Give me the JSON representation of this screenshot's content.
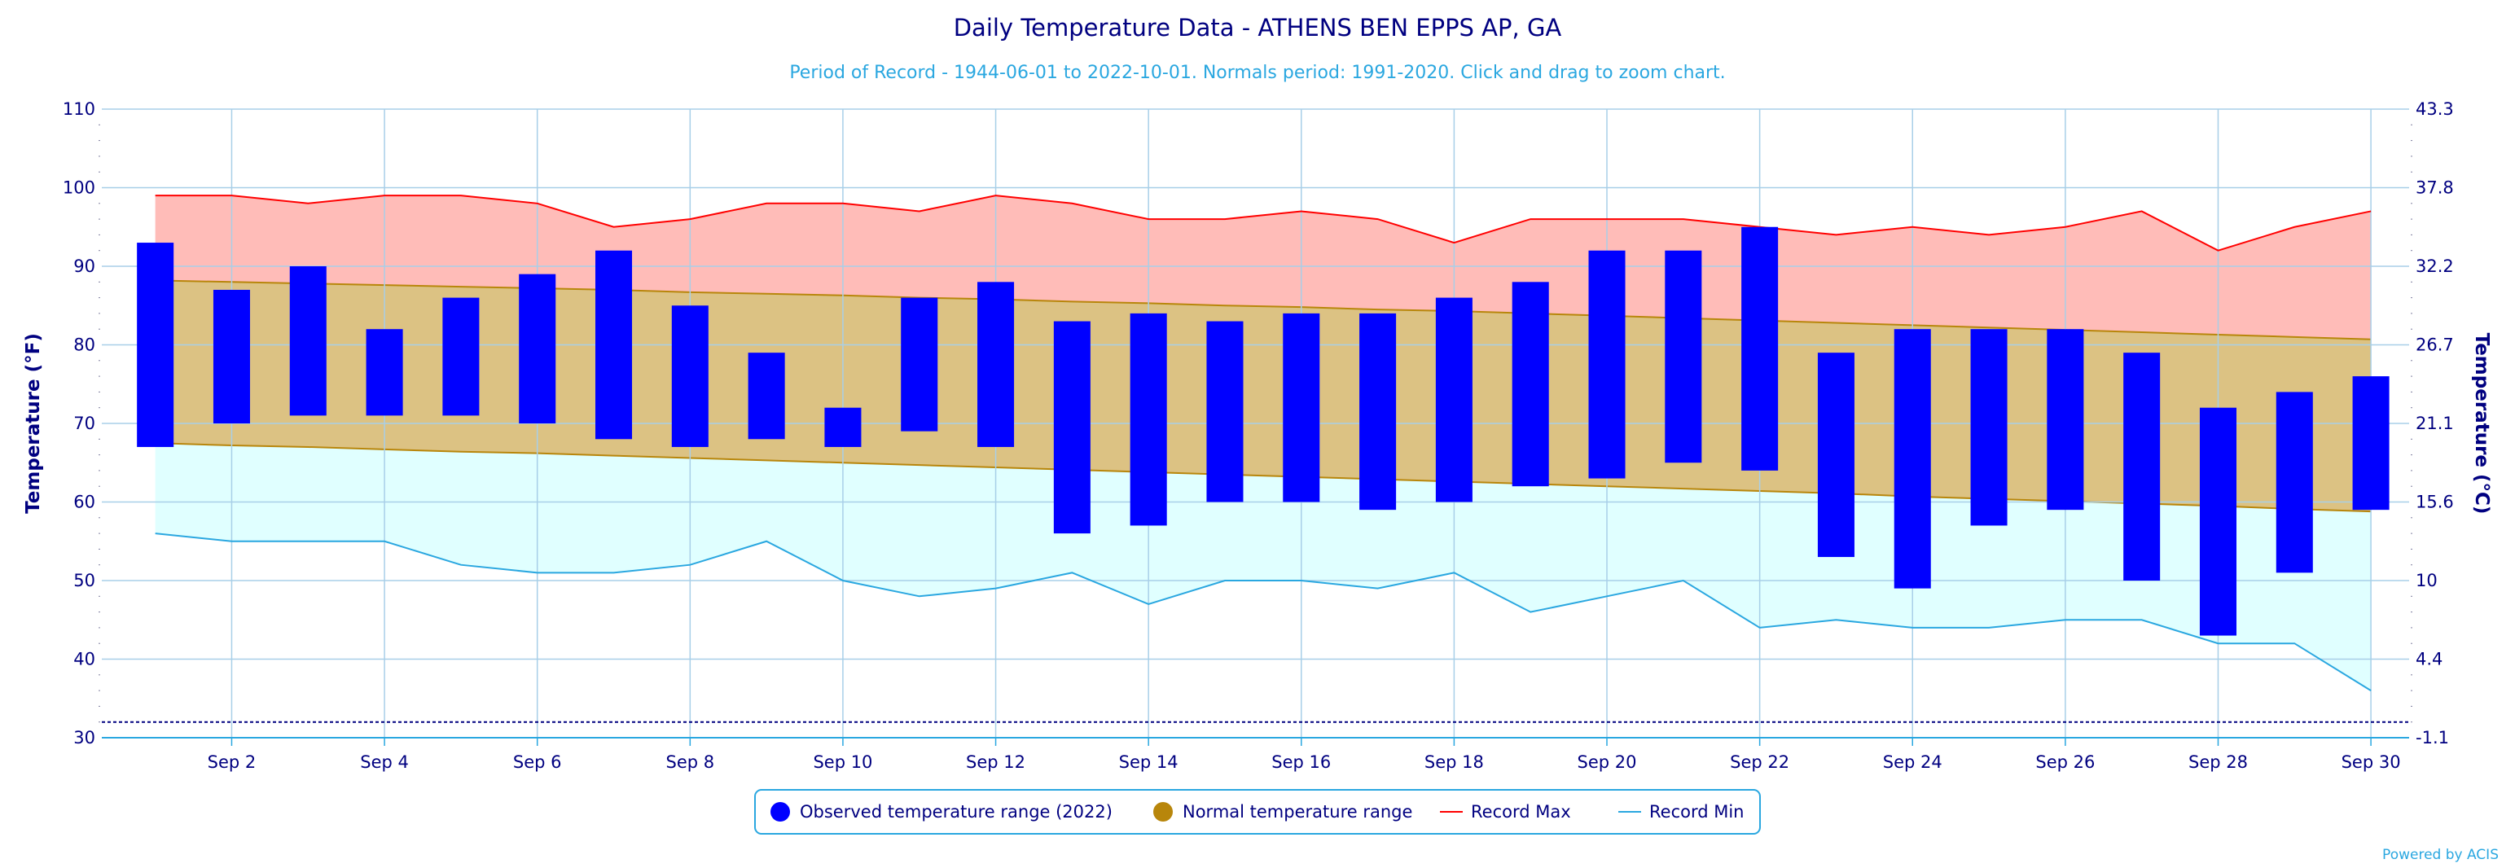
{
  "chart_data": {
    "type": "floating-bar-with-area-bands",
    "title": "Daily Temperature Data - ATHENS BEN EPPS AP, GA",
    "subtitle": "Period of Record - 1944-06-01 to 2022-10-01. Normals period: 1991-2020. Click and drag to zoom chart.",
    "ylabel_left": "Temperature (°F)",
    "ylabel_right": "Temperature (°C)",
    "ylim": [
      30,
      110
    ],
    "y_ticks": [
      30,
      40,
      50,
      60,
      70,
      80,
      90,
      100,
      110
    ],
    "y_ticks_right": [
      "-1.1",
      "4.4",
      "10",
      "15.6",
      "21.1",
      "26.7",
      "32.2",
      "37.8",
      "43.3"
    ],
    "x_range": [
      0.3,
      30.5
    ],
    "x_ticks": [
      {
        "day": 2,
        "label": "Sep 2"
      },
      {
        "day": 4,
        "label": "Sep 4"
      },
      {
        "day": 6,
        "label": "Sep 6"
      },
      {
        "day": 8,
        "label": "Sep 8"
      },
      {
        "day": 10,
        "label": "Sep 10"
      },
      {
        "day": 12,
        "label": "Sep 12"
      },
      {
        "day": 14,
        "label": "Sep 14"
      },
      {
        "day": 16,
        "label": "Sep 16"
      },
      {
        "day": 18,
        "label": "Sep 18"
      },
      {
        "day": 20,
        "label": "Sep 20"
      },
      {
        "day": 22,
        "label": "Sep 22"
      },
      {
        "day": 24,
        "label": "Sep 24"
      },
      {
        "day": 26,
        "label": "Sep 26"
      },
      {
        "day": 28,
        "label": "Sep 28"
      },
      {
        "day": 30,
        "label": "Sep 30"
      }
    ],
    "days": [
      1,
      2,
      3,
      4,
      5,
      6,
      7,
      8,
      9,
      10,
      11,
      12,
      13,
      14,
      15,
      16,
      17,
      18,
      19,
      20,
      21,
      22,
      23,
      24,
      25,
      26,
      27,
      28,
      29,
      30
    ],
    "series": [
      {
        "name": "Observed temperature range (2022)",
        "kind": "floating-bar",
        "color": "#0000ff",
        "low": [
          67,
          70,
          71,
          71,
          71,
          70,
          68,
          67,
          68,
          67,
          69,
          67,
          56,
          57,
          60,
          60,
          59,
          60,
          62,
          63,
          65,
          64,
          53,
          49,
          57,
          59,
          50,
          43,
          51,
          59
        ],
        "high": [
          93,
          87,
          90,
          82,
          86,
          89,
          92,
          85,
          79,
          72,
          86,
          88,
          83,
          84,
          83,
          84,
          84,
          86,
          88,
          92,
          92,
          95,
          79,
          82,
          82,
          82,
          79,
          72,
          74,
          76
        ]
      },
      {
        "name": "Normal temperature range",
        "kind": "band",
        "color": "#b8860b",
        "low": [
          67.5,
          67.2,
          67.0,
          66.7,
          66.4,
          66.2,
          65.9,
          65.6,
          65.3,
          65.0,
          64.7,
          64.4,
          64.1,
          63.8,
          63.5,
          63.2,
          62.9,
          62.6,
          62.3,
          62.0,
          61.7,
          61.4,
          61.1,
          60.7,
          60.4,
          60.1,
          59.8,
          59.5,
          59.1,
          58.8
        ],
        "high": [
          88.2,
          88.0,
          87.8,
          87.6,
          87.4,
          87.2,
          87.0,
          86.7,
          86.5,
          86.3,
          86.0,
          85.8,
          85.5,
          85.3,
          85.0,
          84.8,
          84.5,
          84.3,
          84.0,
          83.7,
          83.4,
          83.1,
          82.8,
          82.5,
          82.2,
          81.9,
          81.6,
          81.3,
          81.0,
          80.7
        ]
      },
      {
        "name": "Record Max",
        "kind": "line",
        "color": "#ff0000",
        "values": [
          99,
          99,
          98,
          99,
          99,
          98,
          95,
          96,
          98,
          98,
          97,
          99,
          98,
          96,
          96,
          97,
          96,
          93,
          96,
          96,
          96,
          95,
          94,
          95,
          94,
          95,
          97,
          92,
          95,
          97
        ]
      },
      {
        "name": "Record Min",
        "kind": "line",
        "color": "#2aa7e0",
        "values": [
          56,
          55,
          55,
          55,
          52,
          51,
          51,
          52,
          55,
          50,
          48,
          49,
          51,
          47,
          50,
          50,
          49,
          51,
          46,
          48,
          50,
          44,
          45,
          44,
          44,
          45,
          45,
          42,
          42,
          36
        ]
      }
    ],
    "reference_line": {
      "value": 32,
      "color": "#000080"
    },
    "colors": {
      "record_fill": "#ffbcb8",
      "normal_fill": "#dcc283",
      "min_fill": "#e0ffff",
      "grid": "#a8cfe8"
    },
    "legend_position": "bottom-center",
    "grid": true
  },
  "legend": {
    "items": [
      {
        "label": "Observed temperature range (2022)",
        "marker": "circle",
        "color": "#0000ff"
      },
      {
        "label": "Normal temperature range",
        "marker": "circle",
        "color": "#b8860b"
      },
      {
        "label": "Record Max",
        "marker": "line",
        "color": "#ff0000"
      },
      {
        "label": "Record Min",
        "marker": "line",
        "color": "#2aa7e0"
      }
    ]
  },
  "credit": "Powered by ACIS"
}
